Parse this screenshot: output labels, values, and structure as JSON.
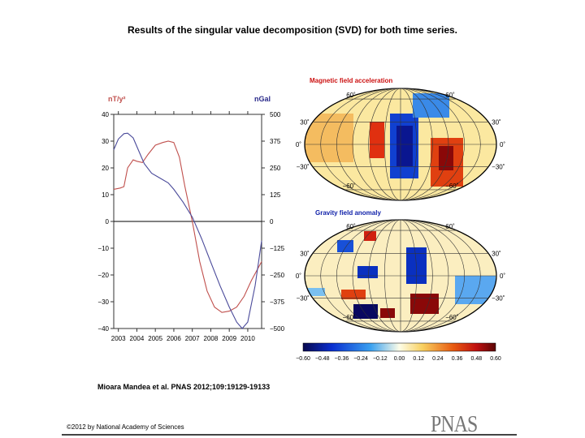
{
  "title": "Results of the singular value decomposition (SVD) for both time series.",
  "citation": "Mioara Mandea et al. PNAS 2012;109:19129-19133",
  "copyright": "©2012 by National Academy of Sciences",
  "logo": "PNAS",
  "chart_data": [
    {
      "type": "line",
      "ylabel_left": "nT/y²",
      "ylabel_right": "nGal",
      "xlim": [
        2002.75,
        2010.75
      ],
      "ylim_left": [
        -40,
        40
      ],
      "ylim_right": [
        -500,
        500
      ],
      "x_ticks": [
        "2003",
        "2004",
        "2005",
        "2006",
        "2007",
        "2008",
        "2009",
        "2010"
      ],
      "y_ticks_left": [
        "40",
        "30",
        "20",
        "10",
        "0",
        "−10",
        "−20",
        "−30",
        "−40"
      ],
      "y_ticks_right": [
        "500",
        "375",
        "250",
        "125",
        "0",
        "−125",
        "−250",
        "−375",
        "−500"
      ],
      "colors": {
        "left": "#c0504d",
        "right": "#4a4a9a"
      },
      "series": [
        {
          "axis": "left",
          "x": [
            2002.75,
            2003.1,
            2003.3,
            2003.5,
            2003.8,
            2004.0,
            2004.3,
            2004.6,
            2005.0,
            2005.4,
            2005.7,
            2006.0,
            2006.3,
            2006.6,
            2007.0,
            2007.4,
            2007.8,
            2008.2,
            2008.6,
            2009.0,
            2009.4,
            2009.8,
            2010.2,
            2010.75
          ],
          "y": [
            12,
            12.5,
            13,
            20,
            23,
            22.5,
            22,
            25,
            28.5,
            29.5,
            30,
            29.5,
            24,
            13,
            0,
            -15,
            -26,
            -32,
            -34,
            -33.5,
            -32,
            -28,
            -22,
            -15
          ]
        },
        {
          "axis": "right",
          "x": [
            2002.75,
            2003.0,
            2003.3,
            2003.5,
            2003.8,
            2004.1,
            2004.4,
            2004.8,
            2005.2,
            2005.7,
            2006.0,
            2006.5,
            2007.0,
            2007.5,
            2008.0,
            2008.5,
            2009.0,
            2009.4,
            2009.7,
            2010.0,
            2010.4,
            2010.75
          ],
          "y": [
            335,
            385,
            410,
            412,
            390,
            330,
            270,
            225,
            205,
            180,
            150,
            90,
            20,
            -80,
            -190,
            -300,
            -400,
            -470,
            -500,
            -470,
            -300,
            -90
          ]
        }
      ]
    },
    {
      "type": "heatmap",
      "maps": [
        {
          "title": "Magnetic field acceleration",
          "title_color": "#cc1111"
        },
        {
          "title": "Gravity field anomaly",
          "title_color": "#1122aa"
        }
      ],
      "lat_labels": [
        "60˚",
        "30˚",
        "0˚",
        "−30˚",
        "−60˚"
      ],
      "colorbar_ticks": [
        "−0.60",
        "−0.48",
        "−0.36",
        "−0.24",
        "−0.12",
        "0.00",
        "0.12",
        "0.24",
        "0.36",
        "0.48",
        "0.60"
      ],
      "colorbar_range": [
        -0.6,
        0.6
      ]
    }
  ]
}
